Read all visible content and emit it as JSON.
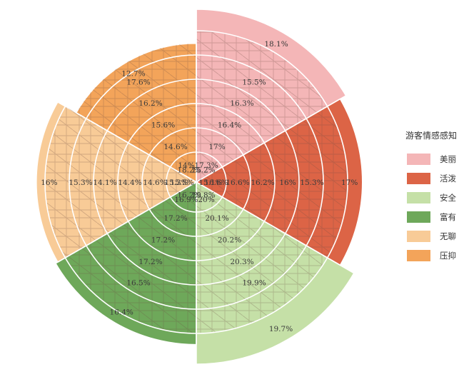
{
  "chart_data": {
    "type": "polar-area",
    "title": "",
    "legend_title": "游客情感感知",
    "legend_position": "right",
    "rings": 6,
    "series": [
      {
        "name": "美丽",
        "color": "#f4b6b7",
        "values": [
          "18.1%",
          "17.3%",
          "17%",
          "16.4%",
          "16.3%",
          "15.5%",
          "15.2%"
        ]
      },
      {
        "name": "活泼",
        "color": "#dc6446",
        "values": [
          "17%",
          "16.6%",
          "16.6%",
          "16.2%",
          "16%",
          "15.3%",
          "15.1%"
        ]
      },
      {
        "name": "安全",
        "color": "#c5e0a7",
        "values": [
          "19.7%",
          "20%",
          "20.1%",
          "20.2%",
          "20.3%",
          "19.9%",
          "19.8%"
        ]
      },
      {
        "name": "富有",
        "color": "#6ea85a",
        "values": [
          "16.4%",
          "16.9%",
          "17.2%",
          "17.2%",
          "17.2%",
          "16.5%",
          "16.2%"
        ]
      },
      {
        "name": "无聊",
        "color": "#f8cb97",
        "values": [
          "16%",
          "15.3%",
          "14.6%",
          "14.4%",
          "14.1%",
          "15.3%",
          "15.5%"
        ]
      },
      {
        "name": "压抑",
        "color": "#f3a45a",
        "values": [
          "12.7%",
          "14%",
          "14.6%",
          "15.6%",
          "16.2%",
          "17.6%",
          "18.2%"
        ]
      }
    ]
  }
}
